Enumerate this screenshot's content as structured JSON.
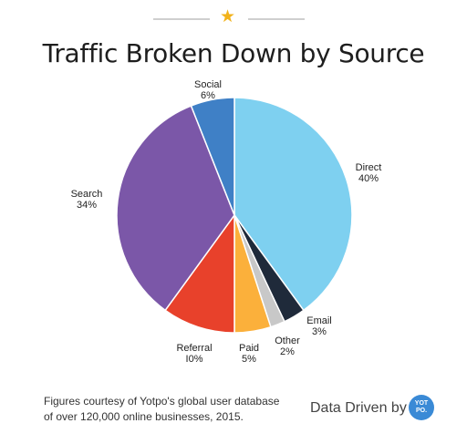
{
  "header": {
    "star_icon": "star-icon"
  },
  "chart_data": {
    "type": "pie",
    "title": "Traffic Broken Down by Source",
    "slices": [
      {
        "label": "Direct",
        "value": 40,
        "text": "40%",
        "color": "#7ed0f0"
      },
      {
        "label": "Email",
        "value": 3,
        "text": "3%",
        "color": "#1f2a3a"
      },
      {
        "label": "Other",
        "value": 2,
        "text": "2%",
        "color": "#c8c8c8"
      },
      {
        "label": "Paid",
        "value": 5,
        "text": "5%",
        "color": "#fbb03b"
      },
      {
        "label": "Referral",
        "value": 10,
        "text": "I0%",
        "color": "#e8412b"
      },
      {
        "label": "Search",
        "value": 34,
        "text": "34%",
        "color": "#7b57a8"
      },
      {
        "label": "Social",
        "value": 6,
        "text": "6%",
        "color": "#3f80c6"
      }
    ]
  },
  "footer": {
    "note_line1": "Figures courtesy of Yotpo's global user database",
    "note_line2": "of over 120,000 online businesses, 2015.",
    "brand_text": "Data Driven by",
    "logo_line1": "YOT",
    "logo_line2": "PO."
  }
}
